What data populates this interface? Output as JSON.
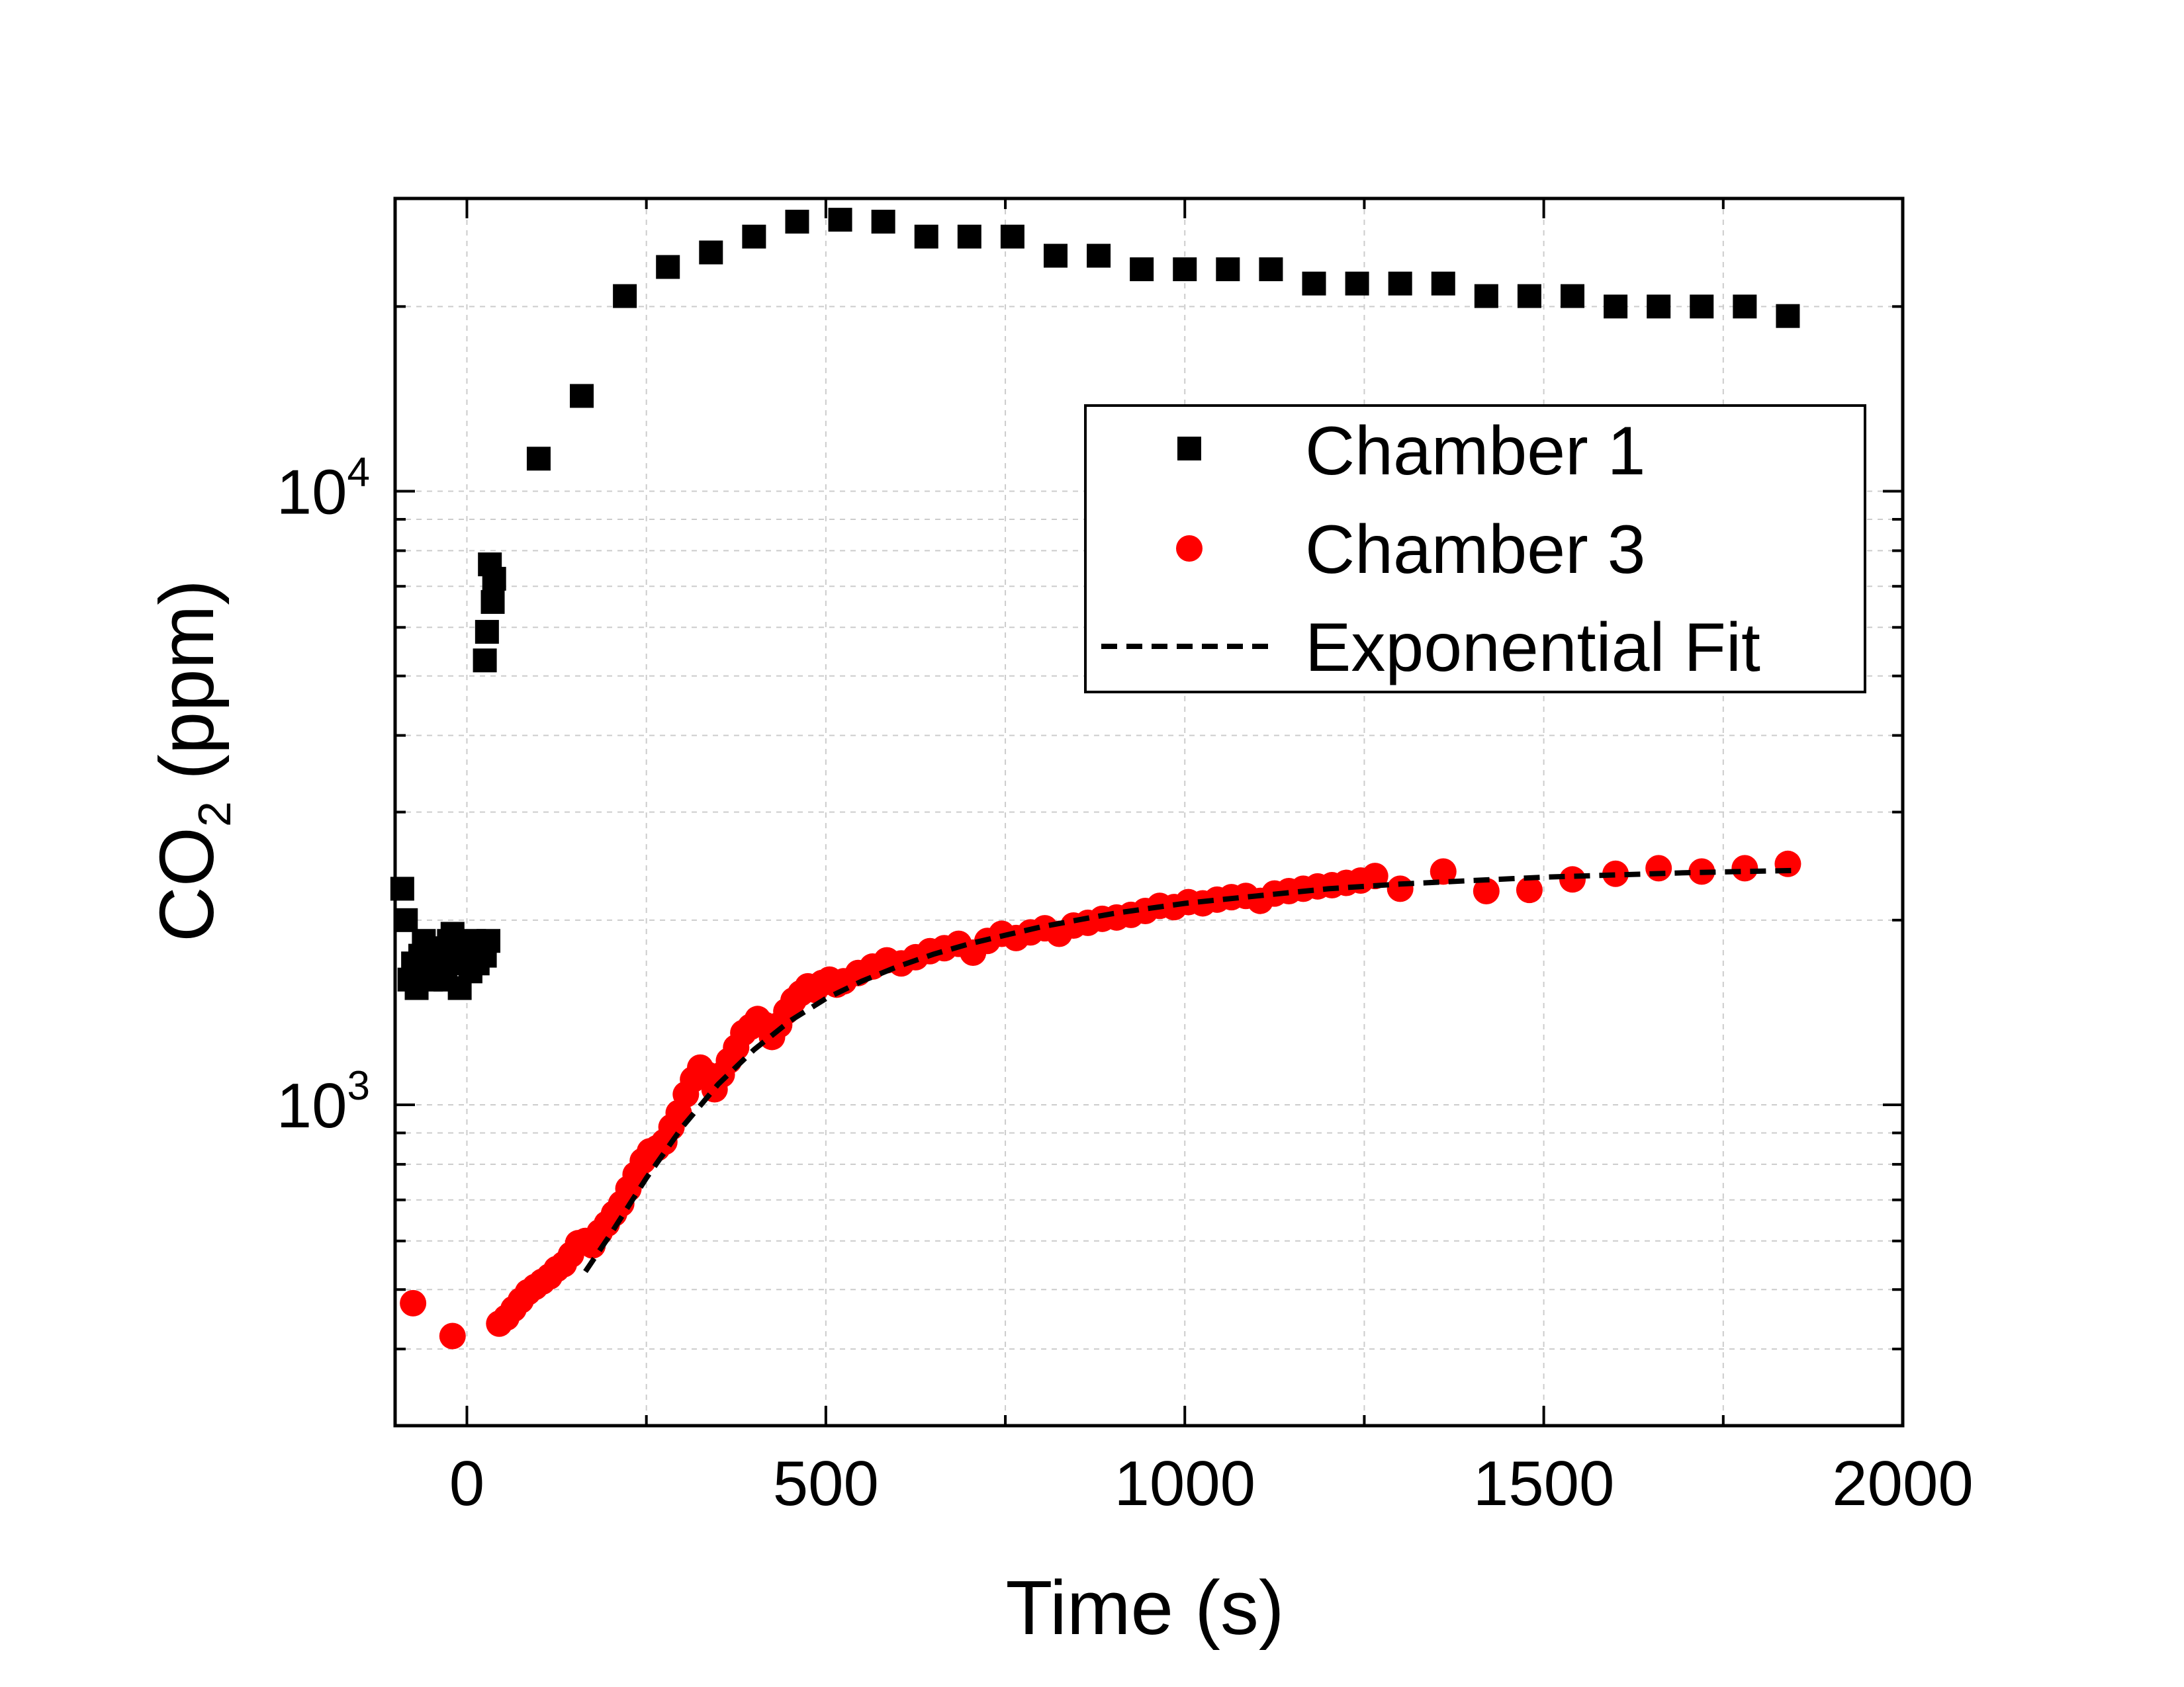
{
  "chart_data": {
    "type": "scatter",
    "xlabel": "Time (s)",
    "ylabel_main": "CO",
    "ylabel_sub": "2",
    "ylabel_rest": " (ppm)",
    "xlim": [
      -100,
      2000
    ],
    "ylim": [
      300,
      30000
    ],
    "yscale": "log",
    "grid": true,
    "legend_position": "top-right",
    "x_ticks": [
      {
        "value": 0,
        "label": "0"
      },
      {
        "value": 500,
        "label": "500"
      },
      {
        "value": 1000,
        "label": "1000"
      },
      {
        "value": 1500,
        "label": "1500"
      },
      {
        "value": 2000,
        "label": "2000"
      }
    ],
    "y_ticks": [
      {
        "value": 1000,
        "base": "10",
        "exp": "3"
      },
      {
        "value": 10000,
        "base": "10",
        "exp": "4"
      }
    ],
    "series": [
      {
        "name": "Chamber 1",
        "marker": "square",
        "color": "#000000",
        "points": [
          [
            -90,
            2250
          ],
          [
            -85,
            2000
          ],
          [
            -80,
            1600
          ],
          [
            -75,
            1700
          ],
          [
            -70,
            1550
          ],
          [
            -65,
            1750
          ],
          [
            -60,
            1850
          ],
          [
            -55,
            1650
          ],
          [
            -50,
            1600
          ],
          [
            -45,
            1800
          ],
          [
            -40,
            1700
          ],
          [
            -35,
            1750
          ],
          [
            -30,
            1600
          ],
          [
            -25,
            1850
          ],
          [
            -20,
            1900
          ],
          [
            -15,
            1700
          ],
          [
            -10,
            1550
          ],
          [
            -5,
            1800
          ],
          [
            0,
            1750
          ],
          [
            5,
            1650
          ],
          [
            10,
            1850
          ],
          [
            15,
            1700
          ],
          [
            20,
            1800
          ],
          [
            25,
            1750
          ],
          [
            30,
            1850
          ],
          [
            25,
            5300
          ],
          [
            28,
            5900
          ],
          [
            32,
            7600
          ],
          [
            36,
            6600
          ],
          [
            38,
            7200
          ],
          [
            100,
            11300
          ],
          [
            160,
            14300
          ],
          [
            220,
            20800
          ],
          [
            280,
            23200
          ],
          [
            340,
            24500
          ],
          [
            400,
            26000
          ],
          [
            460,
            27500
          ],
          [
            520,
            27700
          ],
          [
            580,
            27500
          ],
          [
            640,
            26000
          ],
          [
            700,
            26000
          ],
          [
            760,
            26000
          ],
          [
            820,
            24200
          ],
          [
            880,
            24200
          ],
          [
            940,
            23000
          ],
          [
            1000,
            23000
          ],
          [
            1060,
            23000
          ],
          [
            1120,
            23000
          ],
          [
            1180,
            21800
          ],
          [
            1240,
            21800
          ],
          [
            1300,
            21800
          ],
          [
            1360,
            21800
          ],
          [
            1420,
            20800
          ],
          [
            1480,
            20800
          ],
          [
            1540,
            20800
          ],
          [
            1600,
            20000
          ],
          [
            1660,
            20000
          ],
          [
            1720,
            20000
          ],
          [
            1780,
            20000
          ],
          [
            1840,
            19300
          ]
        ]
      },
      {
        "name": "Chamber 3",
        "marker": "circle",
        "color": "#ff0000",
        "points": [
          [
            -75,
            475
          ],
          [
            -20,
            420
          ],
          [
            45,
            440
          ],
          [
            55,
            450
          ],
          [
            65,
            465
          ],
          [
            75,
            480
          ],
          [
            85,
            495
          ],
          [
            95,
            505
          ],
          [
            105,
            515
          ],
          [
            115,
            525
          ],
          [
            125,
            540
          ],
          [
            135,
            550
          ],
          [
            145,
            570
          ],
          [
            155,
            595
          ],
          [
            165,
            600
          ],
          [
            175,
            590
          ],
          [
            185,
            620
          ],
          [
            195,
            640
          ],
          [
            205,
            665
          ],
          [
            215,
            690
          ],
          [
            225,
            730
          ],
          [
            235,
            770
          ],
          [
            245,
            810
          ],
          [
            255,
            840
          ],
          [
            265,
            850
          ],
          [
            275,
            870
          ],
          [
            285,
            920
          ],
          [
            295,
            970
          ],
          [
            305,
            1040
          ],
          [
            315,
            1100
          ],
          [
            325,
            1150
          ],
          [
            335,
            1120
          ],
          [
            345,
            1060
          ],
          [
            355,
            1120
          ],
          [
            365,
            1180
          ],
          [
            375,
            1240
          ],
          [
            385,
            1310
          ],
          [
            395,
            1340
          ],
          [
            405,
            1380
          ],
          [
            415,
            1350
          ],
          [
            425,
            1290
          ],
          [
            435,
            1350
          ],
          [
            445,
            1420
          ],
          [
            455,
            1480
          ],
          [
            465,
            1520
          ],
          [
            475,
            1560
          ],
          [
            485,
            1540
          ],
          [
            495,
            1580
          ],
          [
            505,
            1600
          ],
          [
            515,
            1570
          ],
          [
            525,
            1590
          ],
          [
            545,
            1640
          ],
          [
            565,
            1680
          ],
          [
            585,
            1720
          ],
          [
            605,
            1700
          ],
          [
            625,
            1740
          ],
          [
            645,
            1780
          ],
          [
            665,
            1800
          ],
          [
            685,
            1830
          ],
          [
            705,
            1770
          ],
          [
            725,
            1850
          ],
          [
            745,
            1900
          ],
          [
            765,
            1870
          ],
          [
            785,
            1910
          ],
          [
            805,
            1940
          ],
          [
            825,
            1900
          ],
          [
            845,
            1960
          ],
          [
            865,
            1980
          ],
          [
            885,
            2010
          ],
          [
            905,
            2020
          ],
          [
            925,
            2040
          ],
          [
            945,
            2070
          ],
          [
            965,
            2110
          ],
          [
            985,
            2100
          ],
          [
            1005,
            2140
          ],
          [
            1025,
            2130
          ],
          [
            1045,
            2160
          ],
          [
            1065,
            2180
          ],
          [
            1085,
            2190
          ],
          [
            1105,
            2150
          ],
          [
            1125,
            2210
          ],
          [
            1145,
            2230
          ],
          [
            1165,
            2250
          ],
          [
            1185,
            2270
          ],
          [
            1205,
            2280
          ],
          [
            1225,
            2300
          ],
          [
            1245,
            2320
          ],
          [
            1265,
            2360
          ],
          [
            1300,
            2250
          ],
          [
            1360,
            2400
          ],
          [
            1420,
            2230
          ],
          [
            1480,
            2240
          ],
          [
            1540,
            2330
          ],
          [
            1600,
            2380
          ],
          [
            1660,
            2430
          ],
          [
            1720,
            2400
          ],
          [
            1780,
            2430
          ],
          [
            1840,
            2470
          ]
        ]
      },
      {
        "name": "Exponential Fit",
        "line": "dashed",
        "color": "#000000",
        "points": [
          [
            165,
            535
          ],
          [
            200,
            615
          ],
          [
            250,
            760
          ],
          [
            300,
            920
          ],
          [
            350,
            1080
          ],
          [
            400,
            1230
          ],
          [
            450,
            1370
          ],
          [
            500,
            1490
          ],
          [
            550,
            1590
          ],
          [
            600,
            1680
          ],
          [
            650,
            1760
          ],
          [
            700,
            1830
          ],
          [
            750,
            1890
          ],
          [
            800,
            1950
          ],
          [
            850,
            2000
          ],
          [
            900,
            2050
          ],
          [
            950,
            2090
          ],
          [
            1000,
            2130
          ],
          [
            1050,
            2160
          ],
          [
            1100,
            2190
          ],
          [
            1150,
            2220
          ],
          [
            1200,
            2250
          ],
          [
            1250,
            2270
          ],
          [
            1300,
            2290
          ],
          [
            1400,
            2320
          ],
          [
            1500,
            2350
          ],
          [
            1600,
            2370
          ],
          [
            1700,
            2390
          ],
          [
            1850,
            2410
          ]
        ]
      }
    ]
  }
}
